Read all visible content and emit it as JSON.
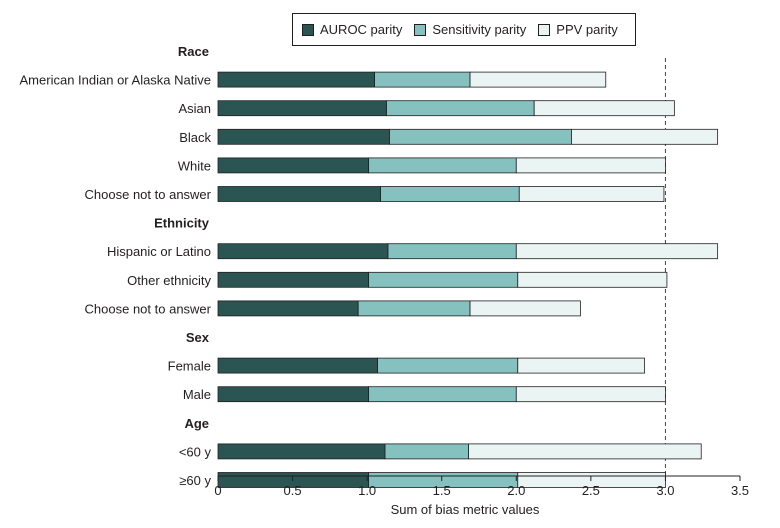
{
  "chart_data": {
    "type": "bar",
    "orientation": "horizontal",
    "stacked": true,
    "xlabel": "Sum of bias metric values",
    "xlim": [
      0,
      3.5
    ],
    "xticks": [
      0,
      0.5,
      1.0,
      1.5,
      2.0,
      2.5,
      3.0,
      3.5
    ],
    "xtick_labels": [
      "0",
      "0.5",
      "1.0",
      "1.5",
      "2.0",
      "2.5",
      "3.0",
      "3.5"
    ],
    "reference_line": 3.0,
    "groups": [
      {
        "name": "Race",
        "categories": [
          "American Indian or Alaska Native",
          "Asian",
          "Black",
          "White",
          "Choose not to answer"
        ]
      },
      {
        "name": "Ethnicity",
        "categories": [
          "Hispanic or Latino",
          "Other ethnicity",
          "Choose not to answer"
        ]
      },
      {
        "name": "Sex",
        "categories": [
          "Female",
          "Male"
        ]
      },
      {
        "name": "Age",
        "categories": [
          "<60 y",
          "≥60 y"
        ]
      }
    ],
    "series": [
      {
        "name": "AUROC parity",
        "color": "#2a5552",
        "values": [
          1.05,
          1.13,
          1.15,
          1.01,
          1.09,
          1.14,
          1.01,
          0.94,
          1.07,
          1.01,
          1.12,
          1.01
        ]
      },
      {
        "name": "Sensitivity parity",
        "color": "#85c1bf",
        "values": [
          0.64,
          0.99,
          1.22,
          0.99,
          0.93,
          0.86,
          1.0,
          0.75,
          0.94,
          0.99,
          0.56,
          1.0
        ]
      },
      {
        "name": "PPV parity",
        "color": "#eaf4f3",
        "values": [
          0.91,
          0.94,
          0.98,
          1.0,
          0.97,
          1.35,
          1.0,
          0.74,
          0.85,
          1.0,
          1.56,
          0.99
        ]
      }
    ]
  }
}
